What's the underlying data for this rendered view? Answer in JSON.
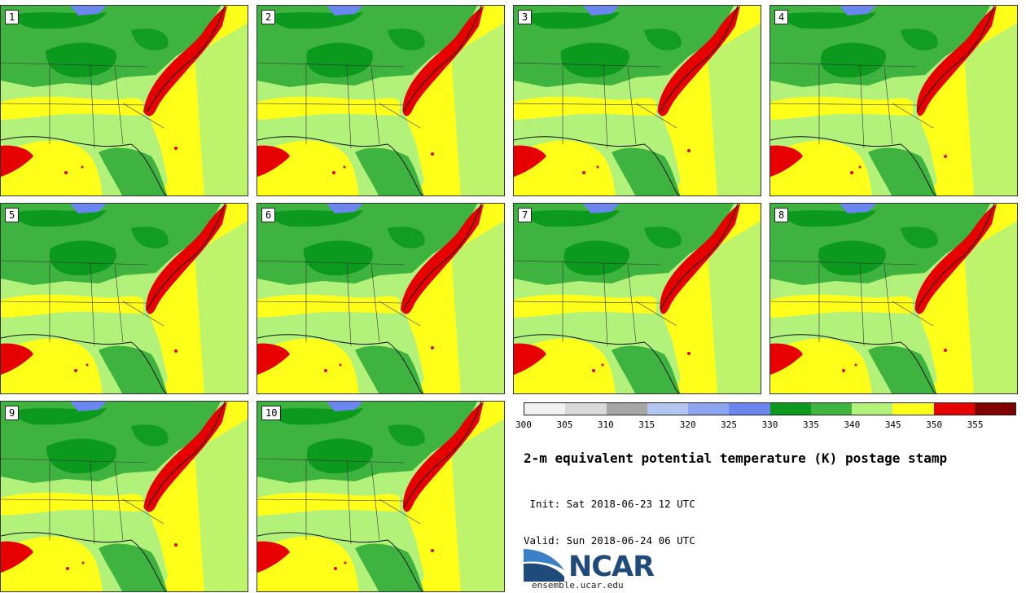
{
  "stamps": [
    {
      "label": "1"
    },
    {
      "label": "2"
    },
    {
      "label": "3"
    },
    {
      "label": "4"
    },
    {
      "label": "5"
    },
    {
      "label": "6"
    },
    {
      "label": "7"
    },
    {
      "label": "8"
    },
    {
      "label": "9"
    },
    {
      "label": "10"
    }
  ],
  "colorbar": {
    "colors": [
      "#f2f2f2",
      "#d9d9d9",
      "#a6a6a6",
      "#b3c6f2",
      "#8ca6f2",
      "#6b86ee",
      "#0b9a1e",
      "#3fb33f",
      "#b3f27a",
      "#ffff1a",
      "#e60000",
      "#800000"
    ],
    "ticks": [
      "300",
      "305",
      "310",
      "315",
      "320",
      "325",
      "330",
      "335",
      "340",
      "345",
      "350",
      "355"
    ]
  },
  "title": "2-m equivalent potential temperature (K) postage stamp",
  "init": " Init: Sat 2018-06-23 12 UTC",
  "valid": "Valid: Sun 2018-06-24 06 UTC",
  "logo": {
    "name": "NCAR",
    "url": "ensemble.ucar.edu"
  }
}
